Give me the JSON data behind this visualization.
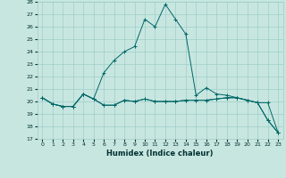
{
  "xlabel": "Humidex (Indice chaleur)",
  "ylabel": "",
  "xlim": [
    -0.5,
    23.5
  ],
  "ylim": [
    17,
    28
  ],
  "yticks": [
    17,
    18,
    19,
    20,
    21,
    22,
    23,
    24,
    25,
    26,
    27,
    28
  ],
  "xticks": [
    0,
    1,
    2,
    3,
    4,
    5,
    6,
    7,
    8,
    9,
    10,
    11,
    12,
    13,
    14,
    15,
    16,
    17,
    18,
    19,
    20,
    21,
    22,
    23
  ],
  "bg_color": "#c8e6e0",
  "grid_color": "#9ecec8",
  "line_color": "#006868",
  "lines": [
    [
      20.3,
      19.8,
      19.6,
      19.6,
      20.6,
      20.2,
      19.7,
      19.7,
      20.1,
      20.0,
      20.2,
      20.0,
      20.0,
      20.0,
      20.1,
      20.1,
      20.1,
      20.2,
      20.3,
      20.3,
      20.1,
      19.9,
      19.9,
      17.5
    ],
    [
      20.3,
      19.8,
      19.6,
      19.6,
      20.6,
      20.2,
      22.3,
      23.3,
      24.0,
      24.4,
      26.6,
      26.0,
      27.8,
      26.6,
      25.4,
      20.5,
      21.1,
      20.6,
      20.5,
      20.3,
      20.1,
      19.9,
      18.5,
      17.5
    ],
    [
      20.3,
      19.8,
      19.6,
      19.6,
      20.6,
      20.2,
      19.7,
      19.7,
      20.1,
      20.0,
      20.2,
      20.0,
      20.0,
      20.0,
      20.1,
      20.1,
      20.1,
      20.2,
      20.3,
      20.3,
      20.1,
      19.9,
      18.5,
      17.5
    ]
  ]
}
